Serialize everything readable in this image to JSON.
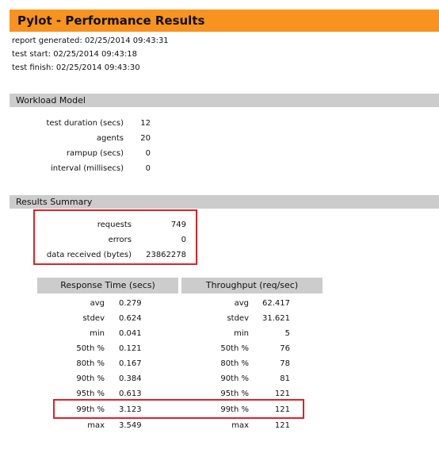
{
  "header": {
    "title": "Pylot - Performance Results"
  },
  "meta": {
    "report_generated_label": "report generated:",
    "report_generated_value": "02/25/2014 09:43:31",
    "test_start_label": "test start:",
    "test_start_value": "02/25/2014 09:43:18",
    "test_finish_label": "test finish:",
    "test_finish_value": "02/25/2014 09:43:30"
  },
  "workload": {
    "heading": "Workload Model",
    "rows": [
      {
        "label": "test duration (secs)",
        "value": "12"
      },
      {
        "label": "agents",
        "value": "20"
      },
      {
        "label": "rampup (secs)",
        "value": "0"
      },
      {
        "label": "interval (millisecs)",
        "value": "0"
      }
    ]
  },
  "summary": {
    "heading": "Results Summary",
    "rows": [
      {
        "label": "requests",
        "value": "749"
      },
      {
        "label": "errors",
        "value": "0"
      },
      {
        "label": "data received (bytes)",
        "value": "23862278"
      }
    ]
  },
  "stats": {
    "response_time_heading": "Response Time (secs)",
    "throughput_heading": "Throughput (req/sec)",
    "rows": [
      {
        "rt_label": "avg",
        "rt_value": "0.279",
        "tp_label": "avg",
        "tp_value": "62.417"
      },
      {
        "rt_label": "stdev",
        "rt_value": "0.624",
        "tp_label": "stdev",
        "tp_value": "31.621"
      },
      {
        "rt_label": "min",
        "rt_value": "0.041",
        "tp_label": "min",
        "tp_value": "5"
      },
      {
        "rt_label": "50th %",
        "rt_value": "0.121",
        "tp_label": "50th %",
        "tp_value": "76"
      },
      {
        "rt_label": "80th %",
        "rt_value": "0.167",
        "tp_label": "80th %",
        "tp_value": "78"
      },
      {
        "rt_label": "90th %",
        "rt_value": "0.384",
        "tp_label": "90th %",
        "tp_value": "81"
      },
      {
        "rt_label": "95th %",
        "rt_value": "0.613",
        "tp_label": "95th %",
        "tp_value": "121"
      },
      {
        "rt_label": "99th %",
        "rt_value": "3.123",
        "tp_label": "99th %",
        "tp_value": "121"
      },
      {
        "rt_label": "max",
        "rt_value": "3.549",
        "tp_label": "max",
        "tp_value": "121"
      }
    ]
  },
  "colors": {
    "title_bar": "#f7931e",
    "section_bar": "#cccccc",
    "highlight": "#d9232a"
  }
}
